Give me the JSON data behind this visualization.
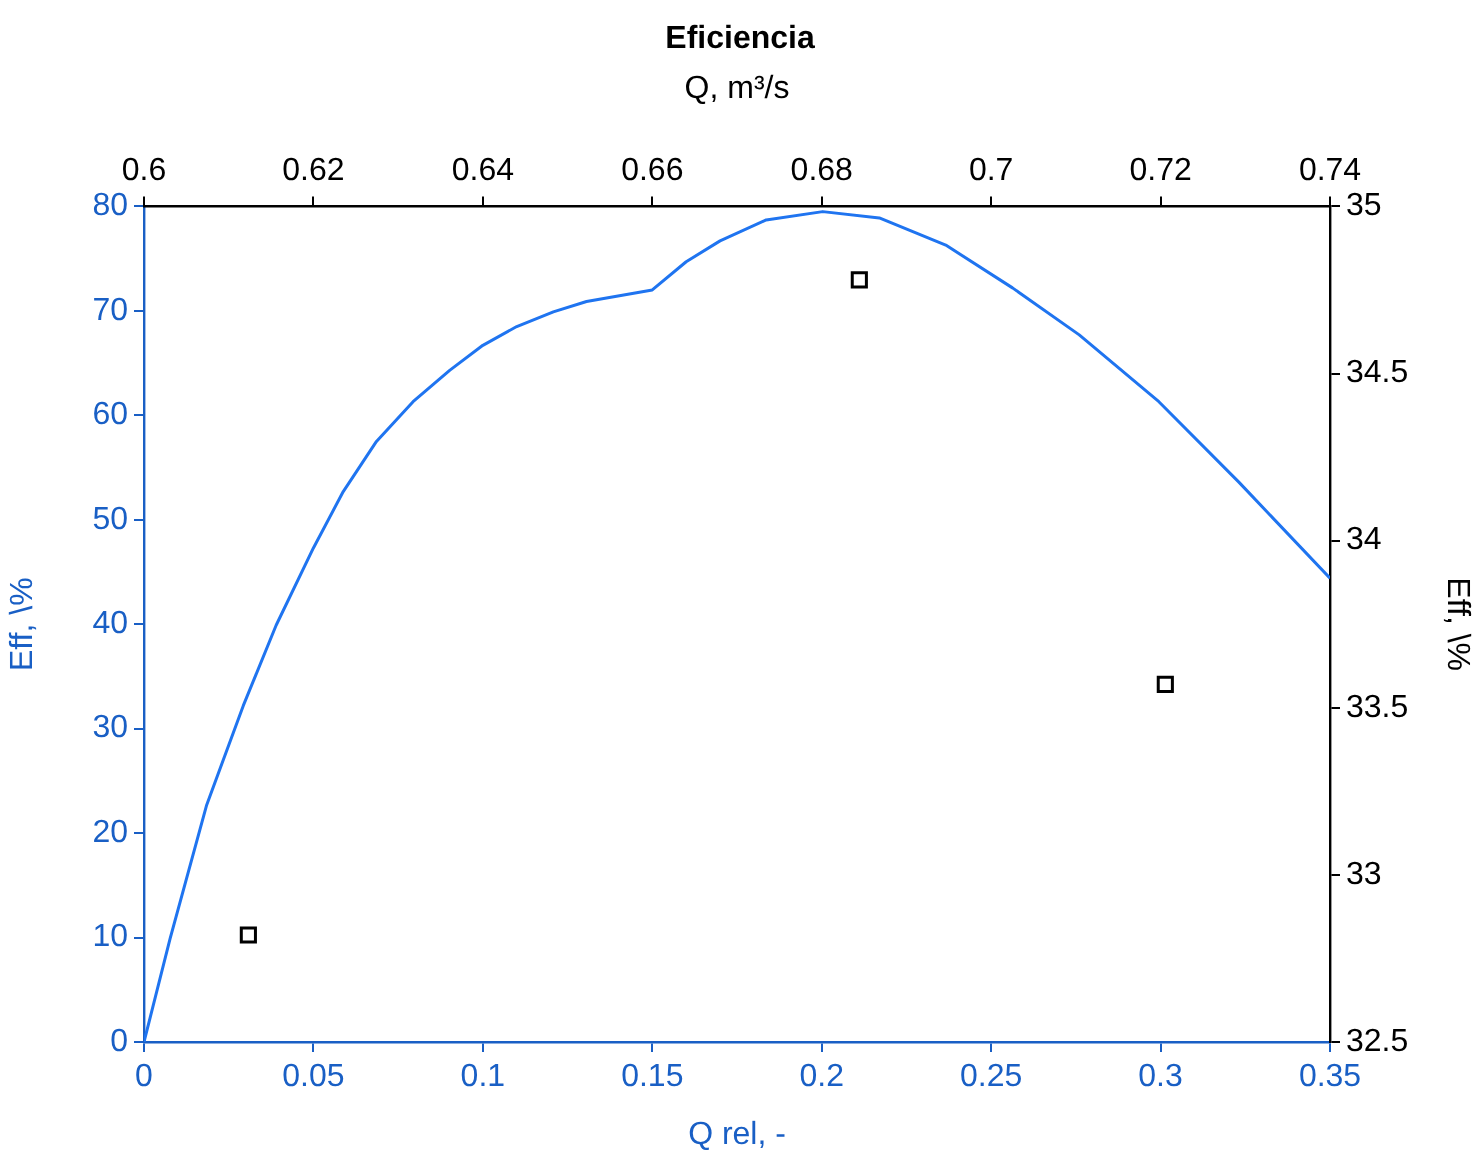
{
  "chart_data": {
    "type": "line",
    "title": "Eficiencia",
    "xlabel": "Q rel, -",
    "ylabel": "Eff, \\%",
    "x2label": "Q, m³/s",
    "y2label": "Eff, \\%",
    "xlim": [
      0,
      0.35
    ],
    "xticks": [
      0,
      0.05,
      0.1,
      0.15,
      0.2,
      0.25,
      0.3,
      0.35
    ],
    "ylim": [
      0,
      80
    ],
    "yticks": [
      0,
      10,
      20,
      30,
      40,
      50,
      60,
      70,
      80
    ],
    "x2lim": [
      0.6,
      0.74
    ],
    "x2ticks": [
      0.6,
      0.62,
      0.64,
      0.66,
      0.68,
      0.7,
      0.72,
      0.74
    ],
    "y2lim": [
      32.5,
      35
    ],
    "y2ticks": [
      32.5,
      33,
      33.5,
      34,
      34.5,
      35
    ],
    "series": [
      {
        "type": "line",
        "color": "#1f74f0",
        "marker": "none",
        "line_style": "solid",
        "x": [
          0,
          0.0077,
          0.0185,
          0.0293,
          0.039,
          0.05,
          0.0588,
          0.0686,
          0.0794,
          0.0902,
          0.1,
          0.11,
          0.1208,
          0.1306,
          0.15,
          0.16,
          0.17,
          0.1836,
          0.2003,
          0.217,
          0.2366,
          0.2563,
          0.276,
          0.2995,
          0.3231,
          0.35
        ],
        "values": [
          0,
          9.9,
          22.7,
          32.2,
          39.9,
          47.3,
          52.7,
          57.5,
          61.3,
          64.3,
          66.7,
          68.5,
          69.9,
          70.9,
          72.0,
          74.7,
          76.7,
          78.7,
          79.5,
          78.9,
          76.3,
          72.2,
          67.7,
          61.3,
          53.6,
          44.4
        ]
      },
      {
        "type": "scatter",
        "color": "#000000",
        "marker": "square",
        "axis": "y2",
        "x": [
          0.0308,
          0.2111,
          0.3014
        ],
        "values": [
          32.82,
          34.78,
          33.57
        ]
      }
    ]
  }
}
